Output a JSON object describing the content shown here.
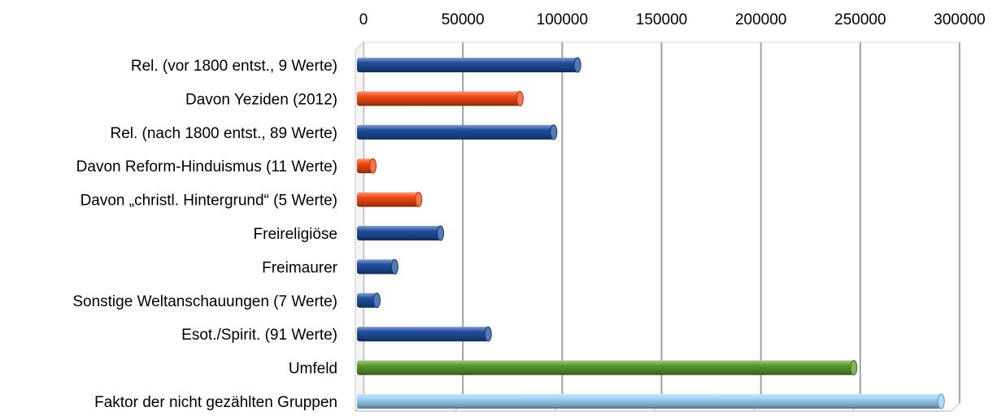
{
  "chart_data": {
    "type": "bar",
    "orientation": "horizontal",
    "title": "",
    "xlabel": "",
    "ylabel": "",
    "xlim": [
      0,
      300000
    ],
    "x_ticks": [
      0,
      50000,
      100000,
      150000,
      200000,
      250000,
      300000
    ],
    "x_tick_labels": [
      "0",
      "50000",
      "100000",
      "150000",
      "200000",
      "250000",
      "300000"
    ],
    "x_axis_position": "top",
    "grid": true,
    "legend": "none",
    "categories": [
      "Rel. (vor 1800 entst., 9 Werte)",
      "Davon Yeziden (2012)",
      "Rel. (nach 1800 entst., 89 Werte)",
      "Davon Reform-Hinduismus (11 Werte)",
      "Davon „christl. Hintergrund“ (5 Werte)",
      "Freireligiöse",
      "Freimaurer",
      "Sonstige Weltanschauungen (7 Werte)",
      "Esot./Spirit. (91 Werte)",
      "Umfeld",
      "Faktor der nicht gezählten Gruppen"
    ],
    "values": [
      111000,
      82000,
      99000,
      8000,
      31000,
      42000,
      19000,
      10000,
      66000,
      250000,
      294000
    ],
    "bar_colors": [
      "#1f4e9c",
      "#f04a14",
      "#1f4e9c",
      "#f04a14",
      "#f04a14",
      "#1f4e9c",
      "#1f4e9c",
      "#1f4e9c",
      "#1f4e9c",
      "#5a9a2a",
      "#9ad0f5"
    ]
  }
}
